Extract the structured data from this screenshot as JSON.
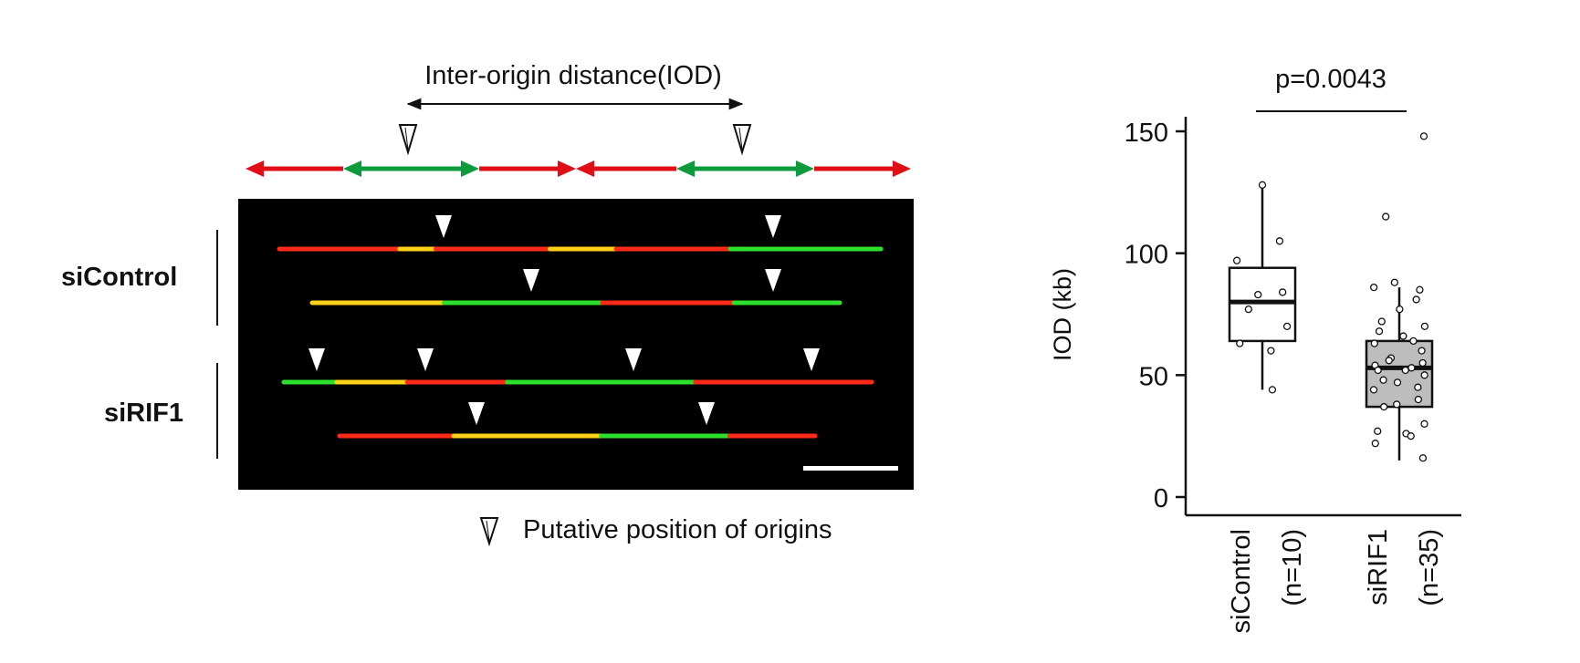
{
  "schematic": {
    "iod_label": "Inter-origin distance(IOD)",
    "colors": {
      "red_fork": "#e00f17",
      "green_fork": "#0d9b3e"
    }
  },
  "micrograph": {
    "row_groups": [
      {
        "label": "siControl"
      },
      {
        "label": "siRIF1"
      }
    ],
    "colors": {
      "background": "#000000",
      "red": "#ff2a1a",
      "green": "#2ee02e",
      "yellow": "#ffd21a"
    }
  },
  "legend": {
    "origin_label": "Putative position of origins",
    "icon": "hollow-down-triangle"
  },
  "chart_data": {
    "type": "box",
    "title": "",
    "significance_label": "p=0.0043",
    "xlabel": "",
    "ylabel": "IOD (kb)",
    "ylim": [
      0,
      150
    ],
    "yticks": [
      0,
      50,
      100,
      150
    ],
    "grid": false,
    "categories": [
      "siControl",
      "siRIF1"
    ],
    "category_n_labels": [
      "(n=10)",
      "(n=35)"
    ],
    "box_colors": [
      "#ffffff",
      "#bdbdbd"
    ],
    "boxes": [
      {
        "q1": 64,
        "median": 80,
        "q3": 94,
        "whisker_low": 44,
        "whisker_high": 128
      },
      {
        "q1": 37,
        "median": 53,
        "q3": 64,
        "whisker_low": 15,
        "whisker_high": 86
      }
    ],
    "points": [
      [
        128,
        105,
        97,
        84,
        83,
        77,
        70,
        63,
        60,
        44
      ],
      [
        148,
        115,
        88,
        85,
        86,
        81,
        77,
        72,
        70,
        68,
        66,
        64,
        63,
        60,
        57,
        56,
        55,
        54,
        53,
        52,
        52,
        50,
        48,
        47,
        45,
        44,
        40,
        38,
        37,
        30,
        27,
        26,
        25,
        22,
        16
      ]
    ]
  }
}
